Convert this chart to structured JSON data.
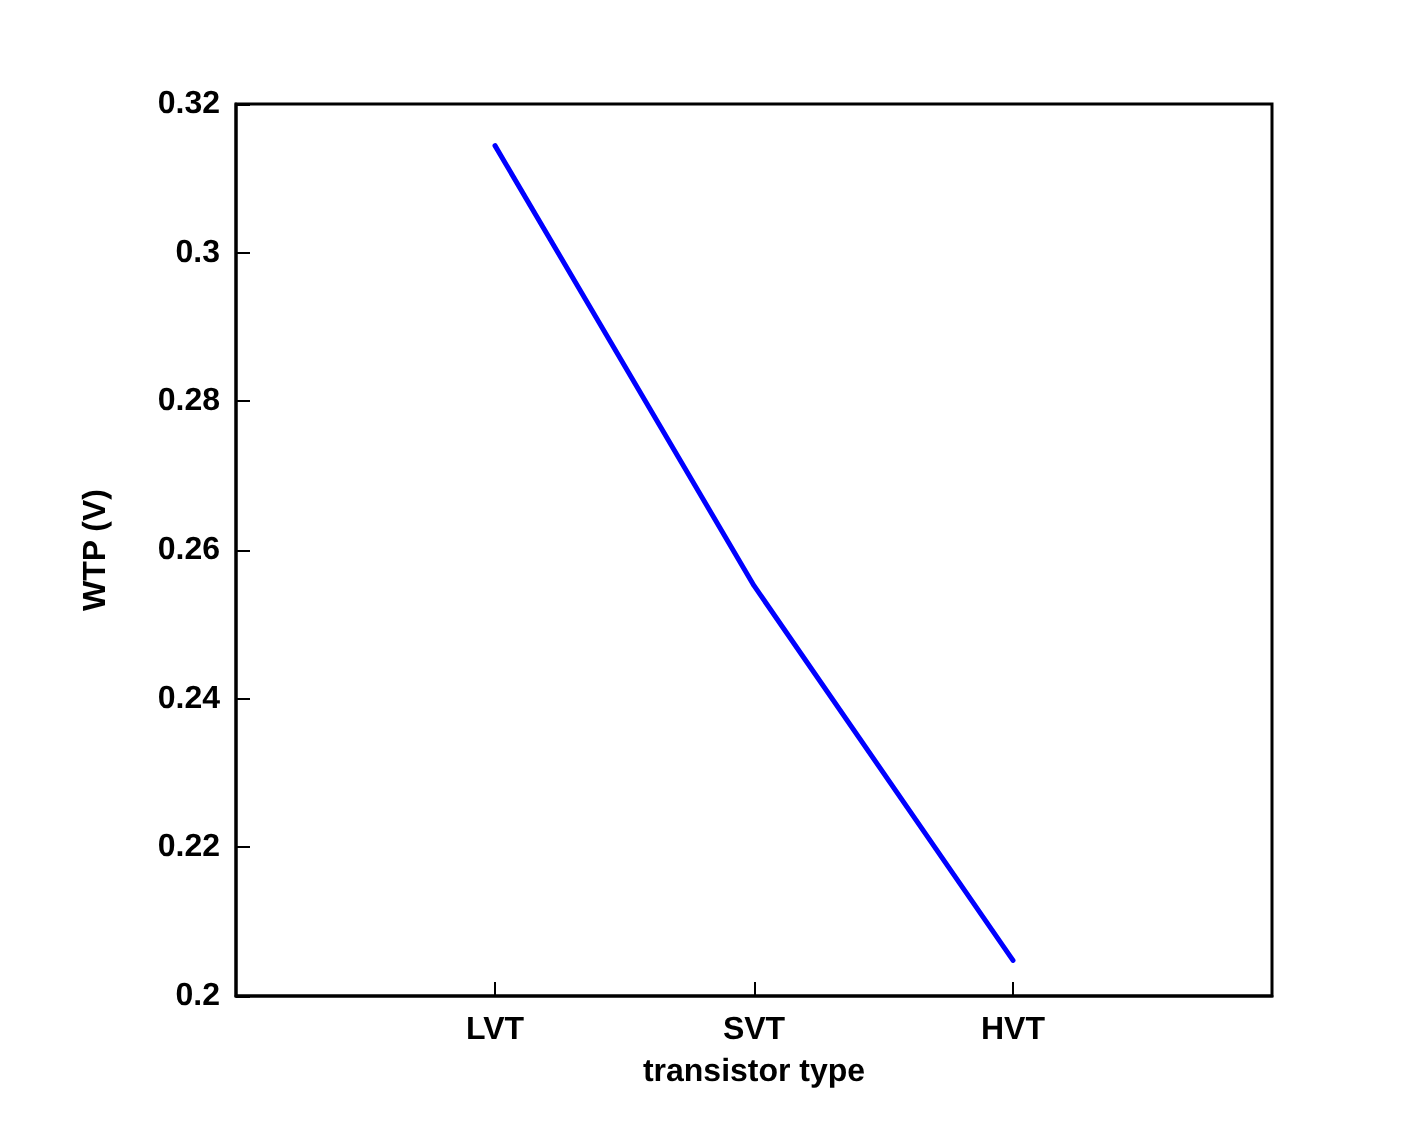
{
  "chart_data": {
    "type": "line",
    "xlabel": "transistor type",
    "ylabel": "WTP (V)",
    "categories": [
      null,
      "LVT",
      "SVT",
      "HVT",
      null
    ],
    "series": [
      {
        "color": "#0000ff",
        "values": [
          null,
          0.3144,
          0.2552,
          0.2048,
          null
        ]
      }
    ],
    "ylim": [
      0.2,
      0.32
    ],
    "yticks": [
      0.2,
      0.22,
      0.24,
      0.26,
      0.28,
      0.3,
      0.32
    ],
    "grid": false,
    "marker": "none",
    "line_style": "solid"
  }
}
